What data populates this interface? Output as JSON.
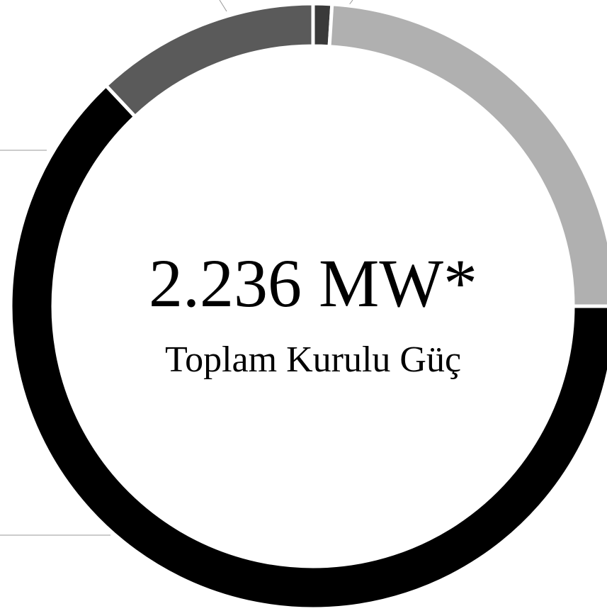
{
  "chart_data": {
    "type": "donut",
    "values": [
      1,
      24,
      63,
      12
    ],
    "colors": [
      "#3a3a3a",
      "#b0b0b0",
      "#000000",
      "#5a5a5a"
    ],
    "center_value": "2.236 MW*",
    "center_label": "Toplam Kurulu Güç"
  }
}
